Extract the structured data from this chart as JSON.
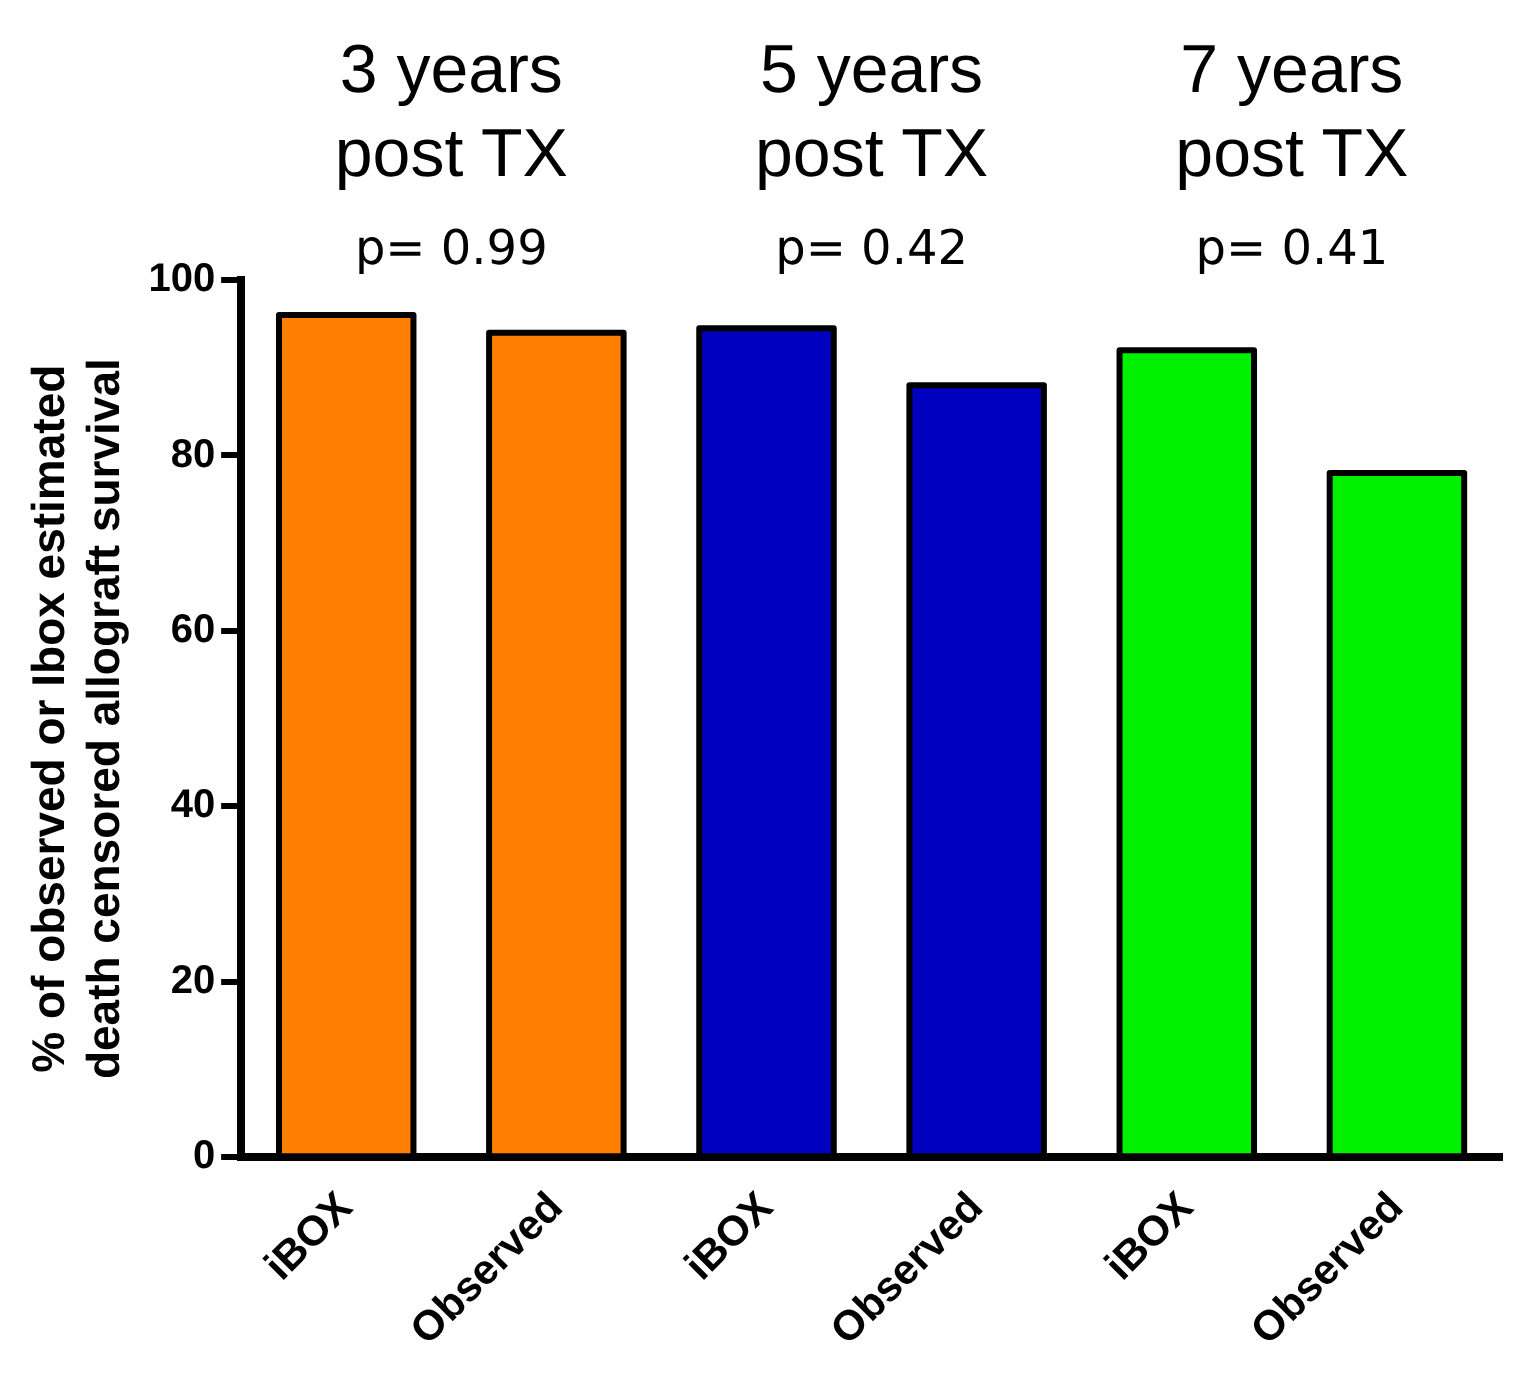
{
  "chart_data": {
    "type": "bar",
    "ylabel": "% of observed or Ibox estimated\ndeath censored allograft survival",
    "categories": [
      "iBOX",
      "Observed",
      "iBOX",
      "Observed",
      "iBOX",
      "Observed"
    ],
    "values": [
      96,
      94,
      94.5,
      88,
      92,
      78
    ],
    "colors": [
      "#ff8000",
      "#ff8000",
      "#0000c0",
      "#0000c0",
      "#00f000",
      "#00f000"
    ],
    "ylim": [
      0,
      100
    ],
    "yticks": [
      0,
      20,
      40,
      60,
      80,
      100
    ],
    "grid": false,
    "legend": false,
    "annotations": [
      "3 years\npost TX",
      "5 years\npost TX",
      "7 years\npost TX",
      "p= 0.99",
      "p= 0.42",
      "p= 0.41"
    ]
  }
}
